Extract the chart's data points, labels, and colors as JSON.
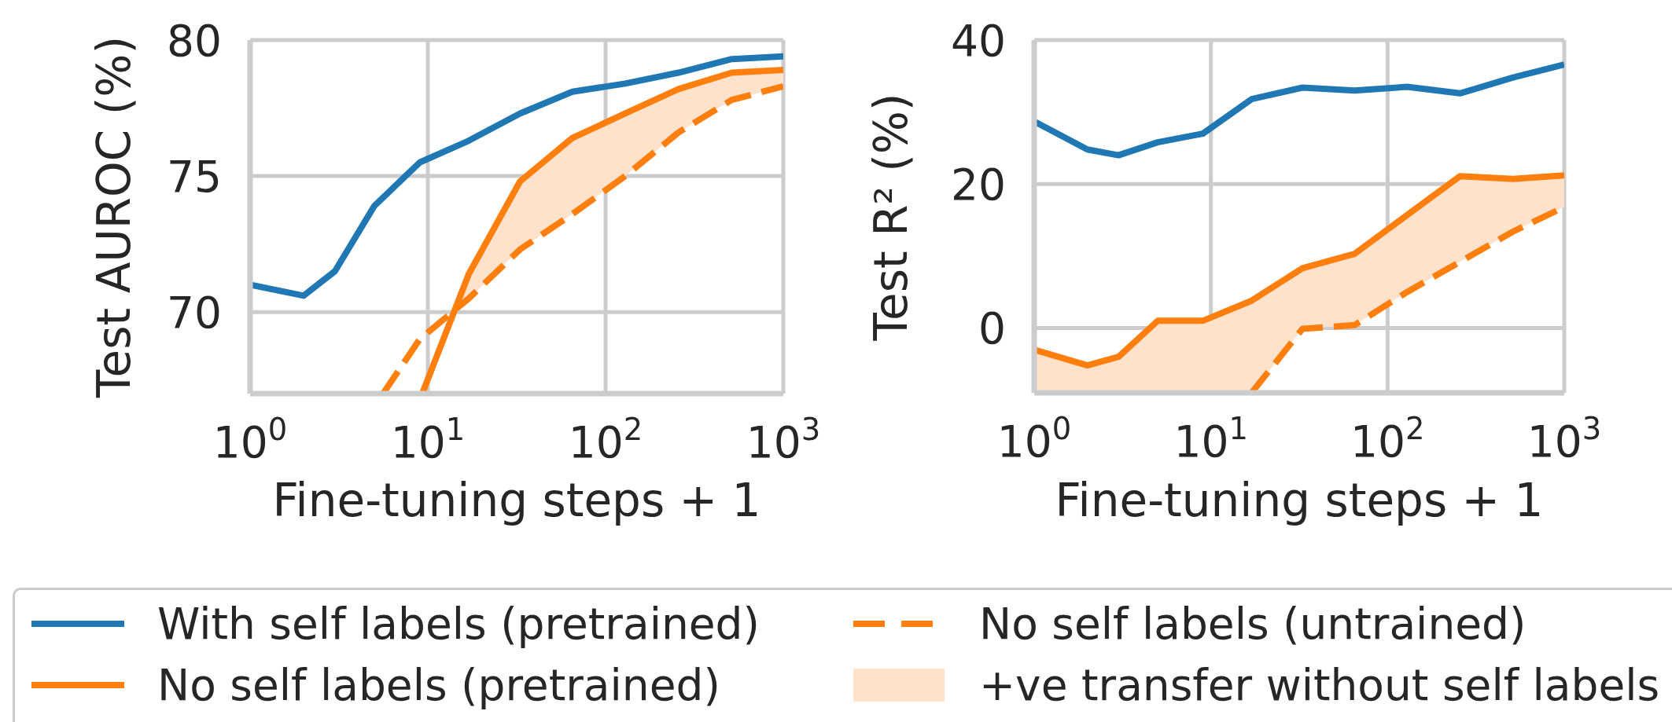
{
  "chart_data": [
    {
      "type": "line",
      "xlabel": "Fine-tuning steps + 1",
      "ylabel": "Test AUROC (%)",
      "log": "x",
      "xlim": [
        1,
        1000
      ],
      "xticks": [
        {
          "value": 1,
          "label": "10$^{0}$"
        },
        {
          "value": 10,
          "label": "10$^{1}$"
        },
        {
          "value": 100,
          "label": "10$^{2}$"
        },
        {
          "value": 1000,
          "label": "10$^{3}$"
        }
      ],
      "ylim": [
        67,
        80
      ],
      "yticks": [
        70,
        75,
        80
      ],
      "grid": true,
      "legend": "bottom",
      "series": [
        {
          "name": "With self labels (pretrained)",
          "color": "#1f77b4",
          "line_style": "solid",
          "x": [
            1,
            2,
            3,
            5,
            9,
            17,
            33,
            65,
            129,
            257,
            513,
            1000
          ],
          "values": [
            71.0,
            70.6,
            71.5,
            73.9,
            75.5,
            76.3,
            77.3,
            78.1,
            78.4,
            78.8,
            79.3,
            79.4
          ]
        },
        {
          "name": "No self labels (pretrained)",
          "color": "#ff7f0e",
          "line_style": "solid",
          "x": [
            9.3,
            17,
            33,
            65,
            129,
            257,
            513,
            1000
          ],
          "values": [
            67,
            71.4,
            74.8,
            76.4,
            77.3,
            78.2,
            78.8,
            78.9
          ]
        },
        {
          "name": "No self labels (untrained)",
          "color": "#ff7f0e",
          "line_style": "dashed",
          "x": [
            5.6,
            9,
            17,
            33,
            65,
            129,
            257,
            513,
            1000
          ],
          "values": [
            67,
            69.0,
            70.5,
            72.3,
            73.6,
            75.0,
            76.6,
            77.8,
            78.3
          ]
        },
        {
          "name": "+ve transfer without self labels",
          "color": "#ffe2cc",
          "x": [
            14.2,
            17,
            33,
            65,
            129,
            257,
            513,
            1000
          ],
          "values": [
            null,
            null,
            null,
            null,
            null,
            null,
            null,
            null
          ],
          "lower": [
            70.1,
            70.5,
            72.3,
            73.6,
            75.0,
            76.6,
            77.8,
            78.3
          ],
          "upper": [
            70.1,
            71.4,
            74.8,
            76.4,
            77.3,
            78.2,
            78.8,
            78.9
          ]
        }
      ]
    },
    {
      "type": "line",
      "xlabel": "Fine-tuning steps + 1",
      "ylabel": "Test R² (%)",
      "log": "x",
      "xlim": [
        1,
        1000
      ],
      "xticks": [
        {
          "value": 1,
          "label": "10$^{0}$"
        },
        {
          "value": 10,
          "label": "10$^{1}$"
        },
        {
          "value": 100,
          "label": "10$^{2}$"
        },
        {
          "value": 1000,
          "label": "10$^{3}$"
        }
      ],
      "ylim": [
        -9,
        40
      ],
      "yticks": [
        0,
        20,
        40
      ],
      "grid": true,
      "series": [
        {
          "color": "#1f77b4",
          "line_style": "solid",
          "x": [
            1,
            2,
            3,
            5,
            9,
            17,
            33,
            65,
            129,
            257,
            513,
            1000
          ],
          "values": [
            28.7,
            24.8,
            24.0,
            25.8,
            27.0,
            31.8,
            33.4,
            33.0,
            33.5,
            32.6,
            34.8,
            36.6
          ]
        },
        {
          "color": "#ff7f0e",
          "line_style": "solid",
          "x": [
            1,
            2,
            3,
            5,
            9,
            17,
            33,
            65,
            129,
            257,
            513,
            1000
          ],
          "values": [
            -3.0,
            -5.2,
            -4.0,
            1.0,
            1.0,
            3.8,
            8.3,
            10.3,
            15.7,
            21.1,
            20.7,
            21.2
          ]
        },
        {
          "color": "#ff7f0e",
          "line_style": "dashed",
          "x": [
            17,
            33,
            65,
            129,
            257,
            513,
            1000
          ],
          "values": [
            -9,
            -0.1,
            0.4,
            5.0,
            9.2,
            13.4,
            16.8
          ]
        },
        {
          "color": "#ffe2cc",
          "x": [
            1,
            2,
            3,
            5,
            9,
            17,
            33,
            65,
            129,
            257,
            513,
            1000
          ],
          "values": [
            null,
            null,
            null,
            null,
            null,
            null,
            null,
            null,
            null,
            null,
            null,
            null
          ],
          "lower": [
            -9,
            -9,
            -9,
            -9,
            -9,
            -9,
            -0.1,
            0.4,
            5.0,
            9.2,
            13.4,
            16.8
          ],
          "upper": [
            -3.0,
            -5.2,
            -4.0,
            1.0,
            1.0,
            3.8,
            8.3,
            10.3,
            15.7,
            21.1,
            20.7,
            21.2
          ]
        }
      ]
    }
  ]
}
